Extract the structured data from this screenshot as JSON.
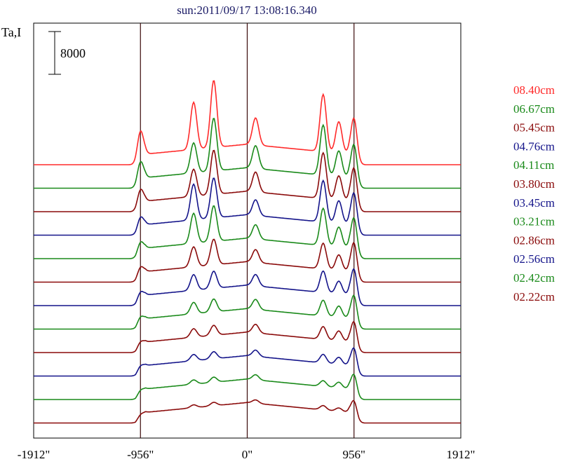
{
  "chart_data": {
    "type": "line",
    "title": "sun:2011/09/17 13:08:16.340",
    "ylabel": "Ta,I",
    "xlabel": "",
    "xlim": [
      -1912,
      1912
    ],
    "x_ticks": [
      {
        "value": -1912,
        "label": "-1912\""
      },
      {
        "value": -956,
        "label": "-956\""
      },
      {
        "value": 0,
        "label": "0\""
      },
      {
        "value": 956,
        "label": "956\""
      },
      {
        "value": 1912,
        "label": "1912\""
      }
    ],
    "reference_lines_x": [
      -956,
      0,
      956
    ],
    "scale_bar": {
      "value": 8000,
      "label": "8000"
    },
    "grid": false,
    "legend_position": "right",
    "colors": {
      "red": "#ff2a2a",
      "green": "#1a8a1a",
      "darkred": "#8a0a0a",
      "blue": "#14148a",
      "frame": "#000000",
      "refline": "#3a0a0a"
    },
    "series": [
      {
        "name": "08.40cm",
        "color": "#ff2a2a",
        "offset": 0,
        "peaks": [
          [
            -956,
            1.0
          ],
          [
            -480,
            1.65
          ],
          [
            -300,
            2.35
          ],
          [
            75,
            0.95
          ],
          [
            680,
            2.0
          ],
          [
            820,
            1.1
          ],
          [
            956,
            1.45
          ]
        ]
      },
      {
        "name": "06.67cm",
        "color": "#1a8a1a",
        "offset": 1,
        "peaks": [
          [
            -956,
            0.75
          ],
          [
            -480,
            1.05
          ],
          [
            -300,
            1.85
          ],
          [
            75,
            0.8
          ],
          [
            680,
            1.75
          ],
          [
            820,
            0.9
          ],
          [
            956,
            1.35
          ]
        ]
      },
      {
        "name": "05.45cm",
        "color": "#8a0a0a",
        "offset": 2,
        "peaks": [
          [
            -956,
            0.6
          ],
          [
            -480,
            0.95
          ],
          [
            -300,
            1.55
          ],
          [
            75,
            0.7
          ],
          [
            680,
            1.6
          ],
          [
            820,
            0.85
          ],
          [
            956,
            1.35
          ]
        ]
      },
      {
        "name": "04.76cm",
        "color": "#14148a",
        "offset": 3,
        "peaks": [
          [
            -956,
            0.45
          ],
          [
            -480,
            1.25
          ],
          [
            -300,
            1.4
          ],
          [
            75,
            0.55
          ],
          [
            680,
            1.45
          ],
          [
            820,
            0.8
          ],
          [
            956,
            1.3
          ]
        ]
      },
      {
        "name": "04.11cm",
        "color": "#1a8a1a",
        "offset": 4,
        "peaks": [
          [
            -956,
            0.4
          ],
          [
            -480,
            1.05
          ],
          [
            -300,
            1.25
          ],
          [
            75,
            0.5
          ],
          [
            680,
            1.3
          ],
          [
            820,
            0.7
          ],
          [
            956,
            1.25
          ]
        ]
      },
      {
        "name": "03.80cm",
        "color": "#8a0a0a",
        "offset": 5,
        "peaks": [
          [
            -956,
            0.35
          ],
          [
            -480,
            0.7
          ],
          [
            -300,
            0.9
          ],
          [
            75,
            0.45
          ],
          [
            680,
            0.9
          ],
          [
            820,
            0.55
          ],
          [
            956,
            1.2
          ]
        ]
      },
      {
        "name": "03.45cm",
        "color": "#14148a",
        "offset": 6,
        "peaks": [
          [
            -956,
            0.3
          ],
          [
            -480,
            0.55
          ],
          [
            -300,
            0.6
          ],
          [
            75,
            0.4
          ],
          [
            680,
            0.75
          ],
          [
            820,
            0.45
          ],
          [
            956,
            1.1
          ]
        ]
      },
      {
        "name": "03.21cm",
        "color": "#1a8a1a",
        "offset": 7,
        "peaks": [
          [
            -956,
            0.25
          ],
          [
            -480,
            0.4
          ],
          [
            -300,
            0.45
          ],
          [
            75,
            0.35
          ],
          [
            680,
            0.55
          ],
          [
            820,
            0.4
          ],
          [
            956,
            1.0
          ]
        ]
      },
      {
        "name": "02.86cm",
        "color": "#8a0a0a",
        "offset": 8,
        "peaks": [
          [
            -956,
            0.2
          ],
          [
            -480,
            0.3
          ],
          [
            -300,
            0.35
          ],
          [
            75,
            0.3
          ],
          [
            680,
            0.45
          ],
          [
            820,
            0.35
          ],
          [
            956,
            0.9
          ]
        ]
      },
      {
        "name": "02.56cm",
        "color": "#14148a",
        "offset": 9,
        "peaks": [
          [
            -956,
            0.18
          ],
          [
            -480,
            0.22
          ],
          [
            -300,
            0.25
          ],
          [
            75,
            0.22
          ],
          [
            680,
            0.3
          ],
          [
            820,
            0.25
          ],
          [
            956,
            0.8
          ]
        ]
      },
      {
        "name": "02.42cm",
        "color": "#1a8a1a",
        "offset": 10,
        "peaks": [
          [
            -956,
            0.15
          ],
          [
            -480,
            0.15
          ],
          [
            -300,
            0.18
          ],
          [
            75,
            0.18
          ],
          [
            680,
            0.2
          ],
          [
            820,
            0.2
          ],
          [
            956,
            0.7
          ]
        ]
      },
      {
        "name": "02.22cm",
        "color": "#8a0a0a",
        "offset": 11,
        "peaks": [
          [
            -956,
            0.12
          ],
          [
            -480,
            0.1
          ],
          [
            -300,
            0.12
          ],
          [
            75,
            0.12
          ],
          [
            680,
            0.15
          ],
          [
            820,
            0.12
          ],
          [
            956,
            0.6
          ]
        ]
      }
    ]
  }
}
